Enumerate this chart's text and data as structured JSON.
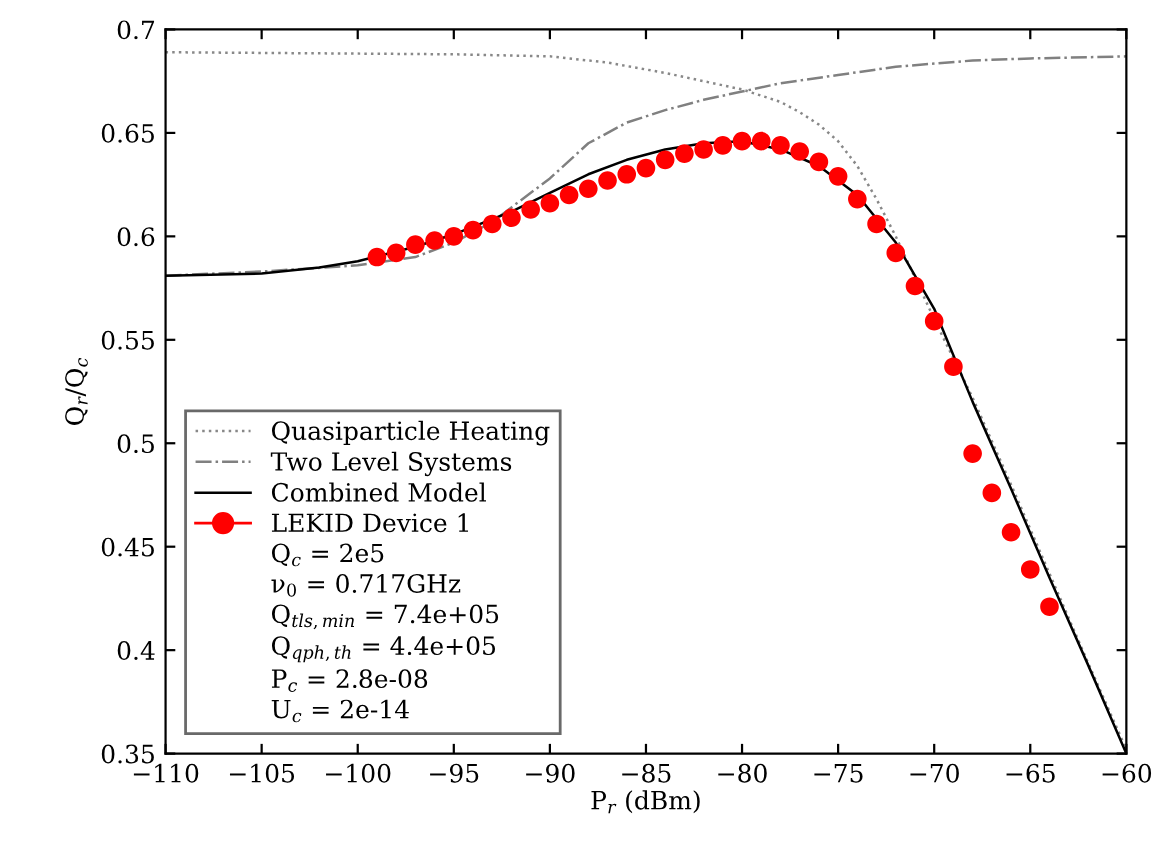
{
  "chart_data": {
    "type": "line",
    "xlabel": "P$_{r}$ (dBm)",
    "ylabel": "Q$_{r}$/Q$_{c}$",
    "xlim": [
      -110,
      -60
    ],
    "xticks": [
      {
        "value": -110,
        "label": "−110"
      },
      {
        "value": -105,
        "label": "−105"
      },
      {
        "value": -100,
        "label": "−100"
      },
      {
        "value": -95,
        "label": "−95"
      },
      {
        "value": -90,
        "label": "−90"
      },
      {
        "value": -85,
        "label": "−85"
      },
      {
        "value": -80,
        "label": "−80"
      },
      {
        "value": -75,
        "label": "−75"
      },
      {
        "value": -70,
        "label": "−70"
      },
      {
        "value": -65,
        "label": "−65"
      },
      {
        "value": -60,
        "label": "−60"
      }
    ],
    "ylim": [
      0.35,
      0.7
    ],
    "yticks": [
      0.35,
      0.4,
      0.45,
      0.5,
      0.55,
      0.6,
      0.65,
      0.7
    ],
    "grid": false,
    "legend": "bottom left",
    "series": [
      {
        "name": "Quasiparticle Heating",
        "line_style": "dotted",
        "marker": "none",
        "color": "#888888",
        "x": [
          -110,
          -95,
          -90,
          -87,
          -84,
          -82,
          -80,
          -78,
          -77,
          -76,
          -75,
          -74,
          -73,
          -72,
          -70,
          -68,
          -66,
          -64,
          -62,
          -60
        ],
        "values": [
          0.689,
          0.688,
          0.687,
          0.684,
          0.679,
          0.675,
          0.671,
          0.665,
          0.66,
          0.654,
          0.646,
          0.634,
          0.618,
          0.6,
          0.56,
          0.522,
          0.48,
          0.437,
          0.394,
          0.352
        ]
      },
      {
        "name": "Two Level Systems",
        "line_style": "dashdot",
        "marker": "none",
        "color": "#808080",
        "x": [
          -110,
          -105,
          -100,
          -97,
          -95,
          -93,
          -92,
          -90,
          -88,
          -86,
          -84,
          -82,
          -80,
          -78,
          -75,
          -72,
          -68,
          -65,
          -60
        ],
        "values": [
          0.581,
          0.583,
          0.586,
          0.59,
          0.597,
          0.607,
          0.614,
          0.628,
          0.645,
          0.655,
          0.661,
          0.666,
          0.67,
          0.674,
          0.678,
          0.682,
          0.685,
          0.686,
          0.687
        ]
      },
      {
        "name": "Combined Model",
        "line_style": "solid",
        "marker": "none",
        "color": "#000000",
        "x": [
          -110,
          -105,
          -102,
          -100,
          -97,
          -95,
          -92,
          -90,
          -88,
          -86,
          -84,
          -82,
          -80,
          -78,
          -76,
          -74,
          -72,
          -70,
          -68,
          -66,
          -64,
          -62,
          -60
        ],
        "values": [
          0.581,
          0.582,
          0.585,
          0.588,
          0.595,
          0.601,
          0.612,
          0.621,
          0.63,
          0.637,
          0.642,
          0.645,
          0.646,
          0.642,
          0.634,
          0.62,
          0.597,
          0.565,
          0.52,
          0.478,
          0.435,
          0.393,
          0.35
        ]
      },
      {
        "name": "LEKID Device 1",
        "type": "scatter",
        "marker": "circle",
        "color": "#ff0000",
        "x": [
          -99,
          -98,
          -97,
          -96,
          -95,
          -94,
          -93,
          -92,
          -91,
          -90,
          -89,
          -88,
          -87,
          -86,
          -85,
          -84,
          -83,
          -82,
          -81,
          -80,
          -79,
          -78,
          -77,
          -76,
          -75,
          -74,
          -73,
          -72,
          -71,
          -70,
          -69,
          -68,
          -67,
          -66,
          -65,
          -64
        ],
        "values": [
          0.59,
          0.592,
          0.596,
          0.598,
          0.6,
          0.603,
          0.606,
          0.609,
          0.613,
          0.616,
          0.62,
          0.623,
          0.627,
          0.63,
          0.633,
          0.637,
          0.64,
          0.642,
          0.644,
          0.646,
          0.646,
          0.644,
          0.641,
          0.636,
          0.629,
          0.618,
          0.606,
          0.592,
          0.576,
          0.559,
          0.537,
          0.495,
          0.476,
          0.457,
          0.439,
          0.421
        ]
      }
    ],
    "annotations": [
      "Q$_{c}$ = 2e5",
      "ν$_{0}$ = 0.717GHz",
      "Q$_{tls,min}$ = 7.4e+05",
      "Q$_{qph,th}$ = 4.4e+05",
      "P$_{c}$ = 2.8e-08",
      "U$_{c}$ = 2e-14"
    ]
  }
}
